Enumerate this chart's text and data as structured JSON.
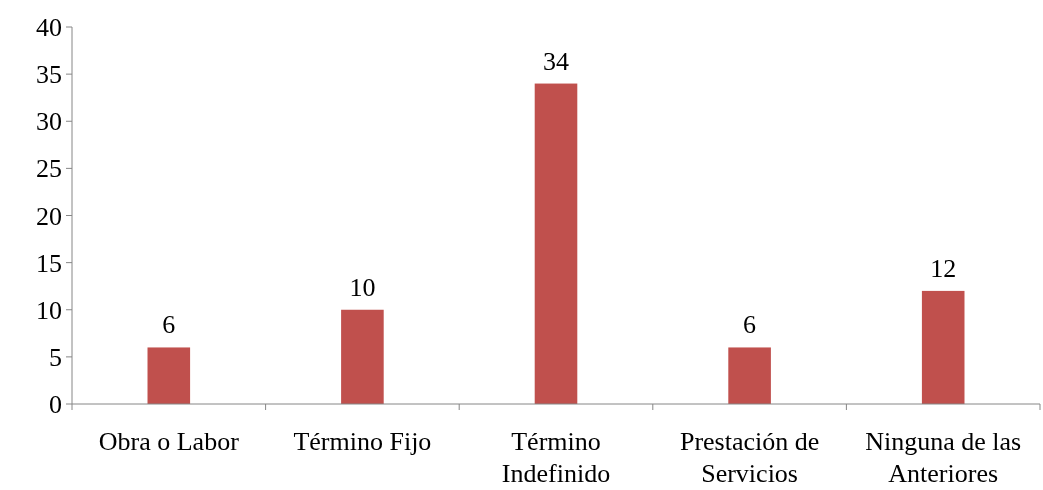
{
  "chart_data": {
    "type": "bar",
    "categories": [
      "Obra o Labor",
      "Término Fijo",
      "Término Indefinido",
      "Prestación de Servicios",
      "Ninguna de las Anteriores"
    ],
    "values": [
      6,
      10,
      34,
      6,
      12
    ],
    "color": "#c0504d",
    "ylim": [
      0,
      40
    ],
    "yticks": [
      0,
      5,
      10,
      15,
      20,
      25,
      30,
      35,
      40
    ],
    "data_labels": true
  }
}
